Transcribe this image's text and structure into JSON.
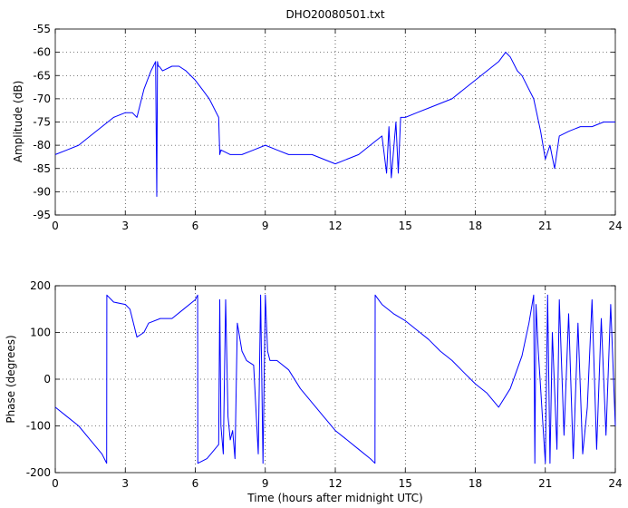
{
  "chart_data": [
    {
      "type": "line",
      "title": "DHO20080501.txt",
      "xlabel": "",
      "ylabel": "Amplitude (dB)",
      "xlim": [
        0,
        24
      ],
      "ylim": [
        -95,
        -55
      ],
      "xticks": [
        "0",
        "3",
        "6",
        "9",
        "12",
        "15",
        "18",
        "21",
        "24"
      ],
      "yticks": [
        "-55",
        "-60",
        "-65",
        "-70",
        "-75",
        "-80",
        "-85",
        "-90",
        "-95"
      ],
      "grid": true,
      "color": "#0000ff",
      "series": [
        {
          "x": [
            0,
            0.5,
            1,
            1.5,
            2,
            2.5,
            3,
            3.3,
            3.5,
            3.8,
            4.1,
            4.3,
            4.35,
            4.38,
            4.41,
            4.45,
            4.6,
            5,
            5.3,
            5.6,
            6,
            6.3,
            6.6,
            7,
            7.05,
            7.1,
            7.5,
            8,
            8.5,
            9,
            9.5,
            10,
            10.5,
            11,
            11.5,
            12,
            12.5,
            13,
            13.5,
            14,
            14.2,
            14.3,
            14.4,
            14.6,
            14.7,
            14.8,
            15,
            15.5,
            16,
            16.5,
            17,
            17.5,
            18,
            18.5,
            19,
            19.3,
            19.5,
            19.8,
            20,
            20.5,
            20.8,
            21,
            21.2,
            21.4,
            21.6,
            22,
            22.5,
            23,
            23.5,
            24
          ],
          "y": [
            -82,
            -81,
            -80,
            -78,
            -76,
            -74,
            -73,
            -73,
            -74,
            -68,
            -64,
            -62,
            -91,
            -62,
            -63,
            -63,
            -64,
            -63,
            -63,
            -64,
            -66,
            -68,
            -70,
            -74,
            -82,
            -81,
            -82,
            -82,
            -81,
            -80,
            -81,
            -82,
            -82,
            -82,
            -83,
            -84,
            -83,
            -82,
            -80,
            -78,
            -86,
            -76,
            -87,
            -75,
            -86,
            -74,
            -74,
            -73,
            -72,
            -71,
            -70,
            -68,
            -66,
            -64,
            -62,
            -60,
            -61,
            -64,
            -65,
            -70,
            -77,
            -83,
            -80,
            -85,
            -78,
            -77,
            -76,
            -76,
            -75,
            -75
          ]
        }
      ]
    },
    {
      "type": "line",
      "title": "",
      "xlabel": "Time (hours after midnight UTC)",
      "ylabel": "Phase (degrees)",
      "xlim": [
        0,
        24
      ],
      "ylim": [
        -200,
        200
      ],
      "xticks": [
        "0",
        "3",
        "6",
        "9",
        "12",
        "15",
        "18",
        "21",
        "24"
      ],
      "yticks": [
        "200",
        "100",
        "0",
        "-100",
        "-200"
      ],
      "grid": true,
      "color": "#0000ff",
      "series": [
        {
          "x": [
            0,
            0.5,
            1,
            1.5,
            2,
            2.2,
            2.21,
            2.5,
            3,
            3.2,
            3.5,
            3.8,
            4,
            4.5,
            5,
            5.5,
            6,
            6.1,
            6.11,
            6.5,
            7,
            7.05,
            7.1,
            7.2,
            7.3,
            7.4,
            7.5,
            7.6,
            7.7,
            7.8,
            8,
            8.2,
            8.5,
            8.7,
            8.8,
            8.9,
            9,
            9.1,
            9.2,
            9.5,
            10,
            10.5,
            11,
            11.5,
            12,
            12.5,
            13,
            13.5,
            13.7,
            13.71,
            14,
            14.5,
            15,
            15.5,
            16,
            16.5,
            17,
            17.5,
            18,
            18.5,
            19,
            19.5,
            20,
            20.3,
            20.5,
            20.55,
            20.6,
            20.7,
            21,
            21.1,
            21.2,
            21.3,
            21.5,
            21.6,
            21.8,
            22,
            22.2,
            22.4,
            22.6,
            22.8,
            23,
            23.2,
            23.4,
            23.6,
            23.8,
            24
          ],
          "y": [
            -60,
            -80,
            -100,
            -130,
            -160,
            -180,
            180,
            165,
            160,
            150,
            90,
            100,
            120,
            130,
            130,
            150,
            170,
            180,
            -180,
            -170,
            -140,
            170,
            -100,
            -160,
            170,
            -80,
            -130,
            -110,
            -170,
            120,
            60,
            40,
            30,
            -160,
            180,
            -180,
            180,
            60,
            40,
            40,
            20,
            -20,
            -50,
            -80,
            -110,
            -130,
            -150,
            -170,
            -180,
            180,
            160,
            140,
            125,
            105,
            85,
            60,
            40,
            15,
            -10,
            -30,
            -60,
            -20,
            50,
            120,
            180,
            -180,
            160,
            60,
            -180,
            180,
            -180,
            100,
            -150,
            170,
            -120,
            140,
            -170,
            120,
            -160,
            -60,
            170,
            -150,
            130,
            -120,
            160,
            -100
          ]
        }
      ]
    }
  ]
}
